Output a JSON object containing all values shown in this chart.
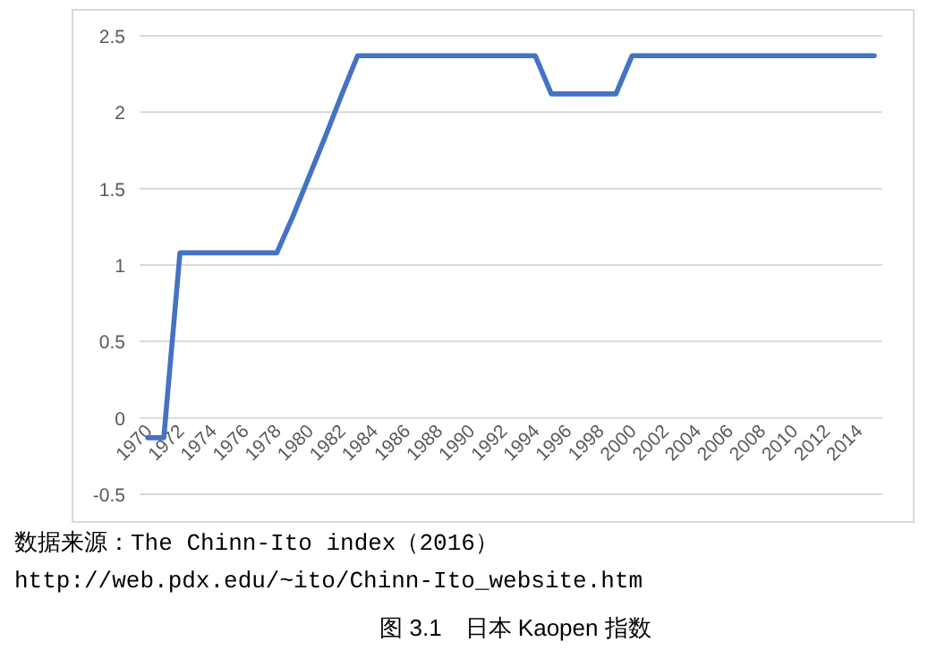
{
  "chart_data": {
    "type": "line",
    "title": "图 3.1　日本 Kaopen 指数",
    "annotations": [
      "数据来源：The Chinn-Ito index（2016）",
      "http://web.pdx.edu/~ito/Chinn-Ito_website.htm"
    ],
    "categories": [
      "1970",
      null,
      "1972",
      null,
      "1974",
      null,
      "1976",
      null,
      "1978",
      null,
      "1980",
      null,
      "1982",
      null,
      "1984",
      null,
      "1986",
      null,
      "1988",
      null,
      "1990",
      null,
      "1992",
      null,
      "1994",
      null,
      "1996",
      null,
      "1998",
      null,
      "2000",
      null,
      "2002",
      null,
      "2004",
      null,
      "2006",
      null,
      "2008",
      null,
      "2010",
      null,
      "2012",
      null,
      "2014",
      null
    ],
    "series": [
      {
        "color": "#4472c4",
        "values": [
          -0.13,
          -0.13,
          1.08,
          1.08,
          1.08,
          1.08,
          1.08,
          1.08,
          1.08,
          1.32,
          1.58,
          1.84,
          2.11,
          2.37,
          2.37,
          2.37,
          2.37,
          2.37,
          2.37,
          2.37,
          2.37,
          2.37,
          2.37,
          2.37,
          2.37,
          2.12,
          2.12,
          2.12,
          2.12,
          2.12,
          2.37,
          2.37,
          2.37,
          2.37,
          2.37,
          2.37,
          2.37,
          2.37,
          2.37,
          2.37,
          2.37,
          2.37,
          2.37,
          2.37,
          2.37,
          2.37
        ]
      }
    ],
    "ylim": [
      -0.5,
      2.5
    ],
    "yticks": [
      -0.5,
      0,
      0.5,
      1,
      1.5,
      2,
      2.5
    ],
    "grid": "y",
    "marker": "none",
    "line_style": "solid"
  }
}
